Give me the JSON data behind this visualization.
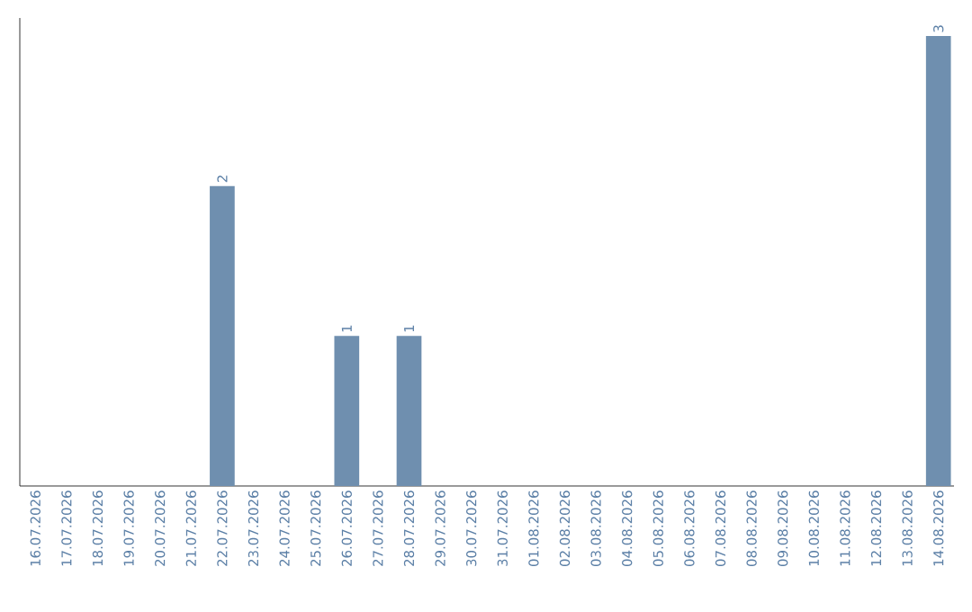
{
  "chart_data": {
    "type": "bar",
    "categories": [
      "16.07.2026",
      "17.07.2026",
      "18.07.2026",
      "19.07.2026",
      "20.07.2026",
      "21.07.2026",
      "22.07.2026",
      "23.07.2026",
      "24.07.2026",
      "25.07.2026",
      "26.07.2026",
      "27.07.2026",
      "28.07.2026",
      "29.07.2026",
      "30.07.2026",
      "31.07.2026",
      "01.08.2026",
      "02.08.2026",
      "03.08.2026",
      "04.08.2026",
      "05.08.2026",
      "06.08.2026",
      "07.08.2026",
      "08.08.2026",
      "09.08.2026",
      "10.08.2026",
      "11.08.2026",
      "12.08.2026",
      "13.08.2026",
      "14.08.2026"
    ],
    "values": [
      0,
      0,
      0,
      0,
      0,
      0,
      2,
      0,
      0,
      0,
      1,
      0,
      1,
      0,
      0,
      0,
      0,
      0,
      0,
      0,
      0,
      0,
      0,
      0,
      0,
      0,
      0,
      0,
      0,
      3
    ],
    "value_labels": [
      null,
      null,
      null,
      null,
      null,
      null,
      "2",
      null,
      null,
      null,
      "1",
      null,
      "1",
      null,
      null,
      null,
      null,
      null,
      null,
      null,
      null,
      null,
      null,
      null,
      null,
      null,
      null,
      null,
      null,
      "3"
    ],
    "color": "#6f8faf",
    "ylim": [
      0,
      3.12
    ],
    "tick_labels": "x"
  }
}
